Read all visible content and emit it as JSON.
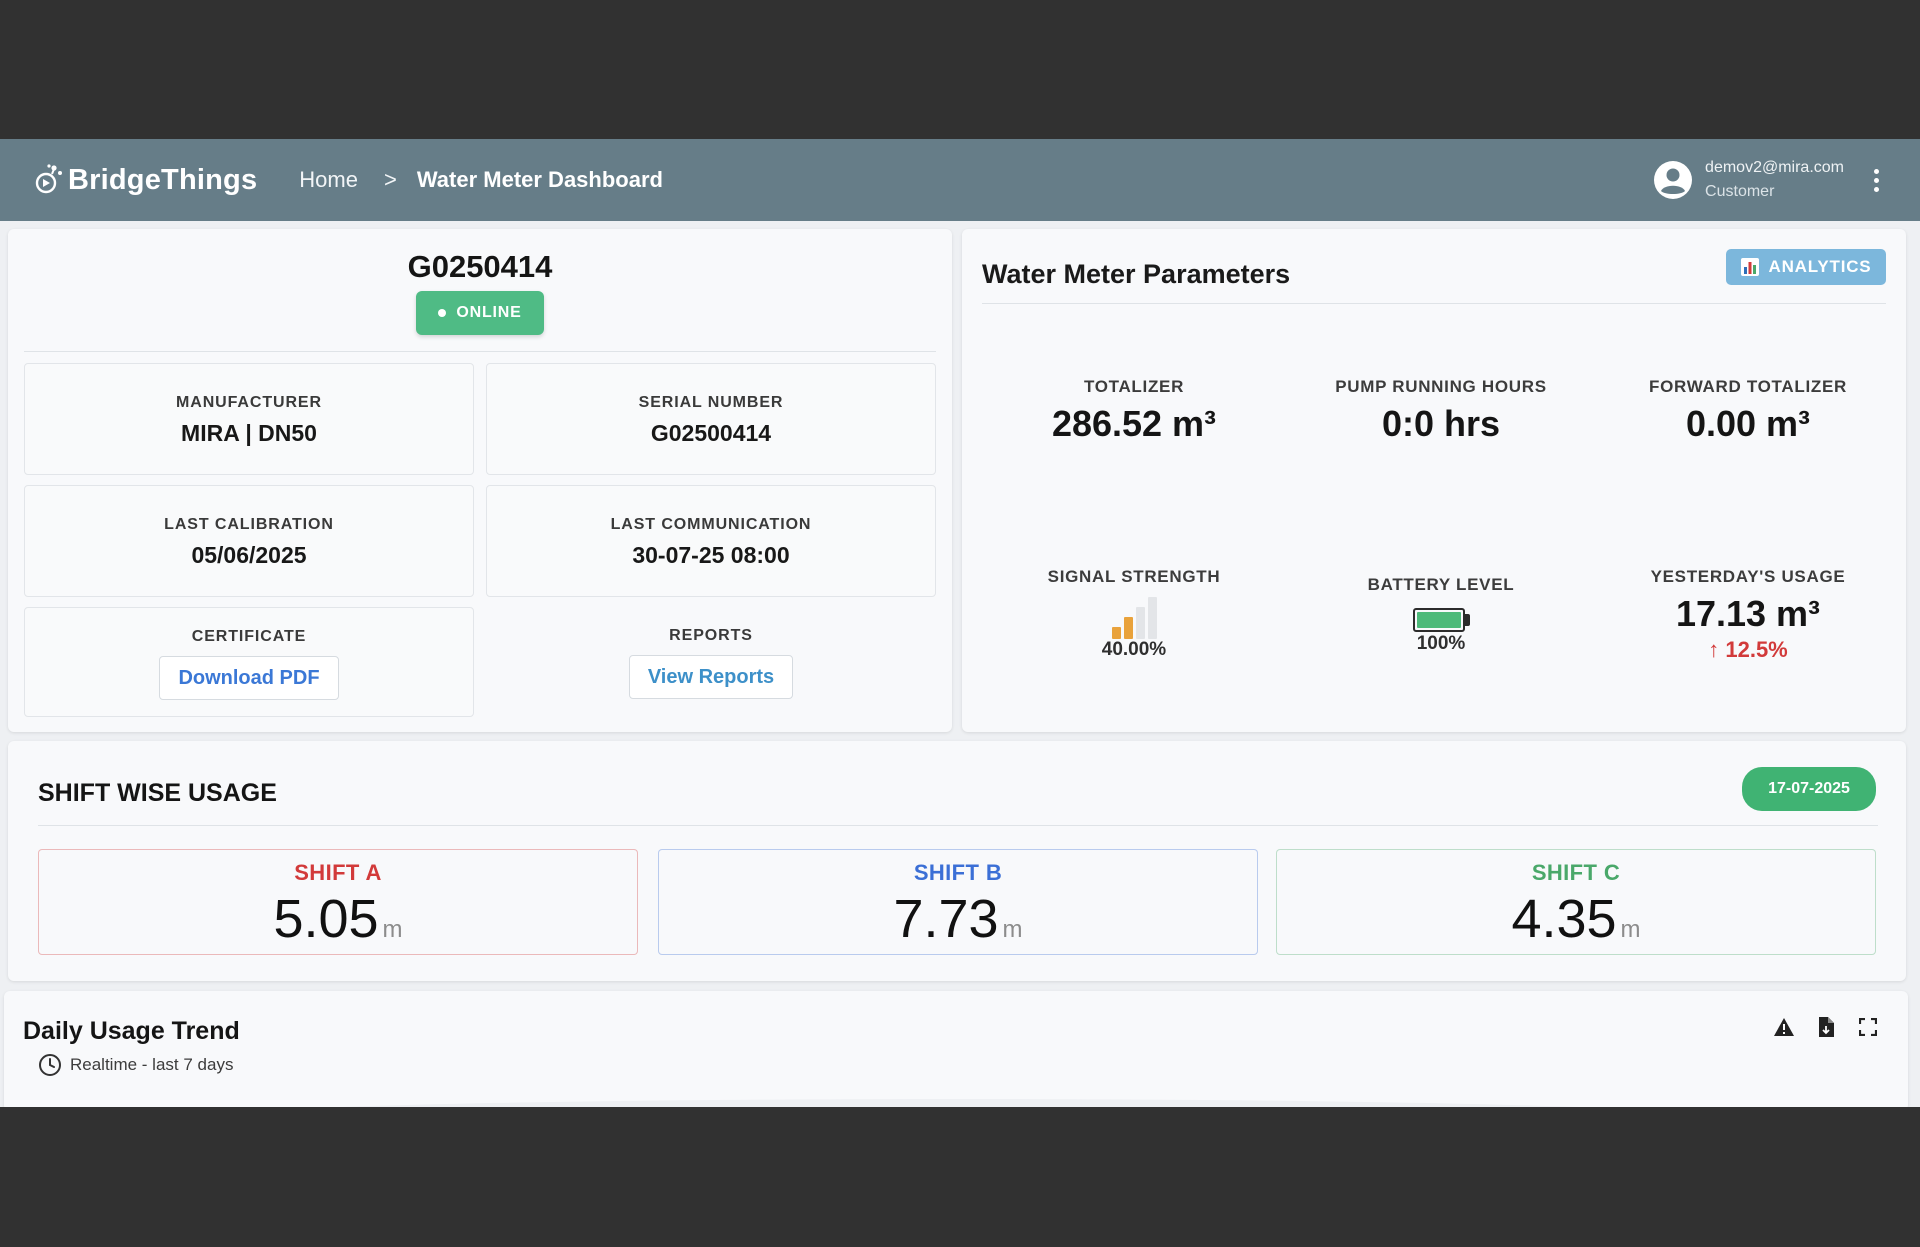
{
  "header": {
    "brand": "BridgeThings",
    "breadcrumb": {
      "home": "Home",
      "separator": ">",
      "current": "Water Meter Dashboard"
    },
    "user": {
      "email": "demov2@mira.com",
      "role": "Customer"
    },
    "icons": {
      "logo": "bridgethings-logo-icon",
      "avatar": "account-circle-icon",
      "menu": "more-vertical-icon"
    }
  },
  "device": {
    "id": "G0250414",
    "status": "ONLINE",
    "status_color": "#4fbb85",
    "manufacturer": {
      "label": "MANUFACTURER",
      "value": "MIRA | DN50"
    },
    "serial": {
      "label": "SERIAL NUMBER",
      "value": "G02500414"
    },
    "calibration": {
      "label": "LAST CALIBRATION",
      "value": "05/06/2025"
    },
    "communication": {
      "label": "LAST COMMUNICATION",
      "value": "30-07-25 08:00"
    },
    "certificate": {
      "label": "CERTIFICATE",
      "button": "Download PDF"
    },
    "reports": {
      "label": "REPORTS",
      "button": "View Reports"
    }
  },
  "parameters": {
    "title": "Water Meter Parameters",
    "analytics_button": "ANALYTICS",
    "analytics_icon": "bar-chart-icon",
    "totalizer": {
      "label": "TOTALIZER",
      "value": "286.52 m³"
    },
    "pump_hours": {
      "label": "PUMP RUNNING HOURS",
      "value": "0:0 hrs"
    },
    "forward_totalizer": {
      "label": "FORWARD TOTALIZER",
      "value": "0.00 m³"
    },
    "signal": {
      "label": "SIGNAL STRENGTH",
      "value": "40.00%",
      "bars_active": 2,
      "bars_total": 4,
      "active_color": "#e9a23b"
    },
    "battery": {
      "label": "BATTERY LEVEL",
      "value": "100%",
      "level": 1.0,
      "fill_color": "#4dba7a"
    },
    "yesterday": {
      "label": "YESTERDAY'S USAGE",
      "value": "17.13 m³",
      "change": "↑ 12.5%",
      "change_color": "#d23a3a"
    }
  },
  "shifts": {
    "title": "SHIFT WISE USAGE",
    "date": "17-07-2025",
    "items": [
      {
        "name": "SHIFT A",
        "value": "5.05",
        "unit": "m",
        "color": "#d23a3a"
      },
      {
        "name": "SHIFT B",
        "value": "7.73",
        "unit": "m",
        "color": "#3b6fd6"
      },
      {
        "name": "SHIFT C",
        "value": "4.35",
        "unit": "m",
        "color": "#4aa86a"
      }
    ]
  },
  "trend": {
    "title": "Daily Usage Trend",
    "subtitle": "Realtime - last 7 days",
    "icons": [
      "warning-icon",
      "export-file-icon",
      "fullscreen-icon"
    ]
  }
}
